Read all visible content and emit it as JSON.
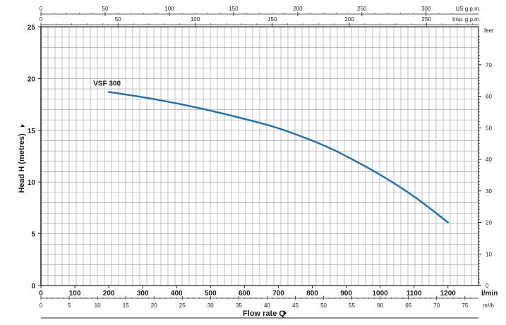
{
  "chart_data": {
    "type": "line",
    "series": [
      {
        "name": "VSF 300",
        "x": [
          200,
          300,
          400,
          500,
          600,
          700,
          800,
          850,
          900,
          1000,
          1100,
          1200
        ],
        "y": [
          18.7,
          18.2,
          17.6,
          16.9,
          16.1,
          15.2,
          14.0,
          13.3,
          12.5,
          10.7,
          8.6,
          6.1
        ]
      }
    ],
    "x_axis": {
      "label": "Flow rate  Q",
      "unit": "l/min",
      "range": [
        0,
        1290
      ],
      "ticks": [
        "0",
        "100",
        "200",
        "300",
        "400",
        "500",
        "600",
        "700",
        "800",
        "900",
        "1000",
        "1100",
        "1200"
      ]
    },
    "x_axis_m3h": {
      "unit": "m³/h",
      "ticks": [
        "0",
        "5",
        "10",
        "15",
        "20",
        "25",
        "30",
        "35",
        "40",
        "45",
        "50",
        "55",
        "60",
        "65",
        "70",
        "75"
      ]
    },
    "x_axis_us_gpm": {
      "unit": "US g.p.m.",
      "ticks": [
        "0",
        "50",
        "100",
        "150",
        "200",
        "250",
        "300"
      ]
    },
    "x_axis_imp_gpm": {
      "unit": "Imp. g.p.m.",
      "ticks": [
        "0",
        "50",
        "100",
        "150",
        "200",
        "250"
      ]
    },
    "y_axis": {
      "label": "Head H (metres)",
      "range": [
        0,
        25
      ],
      "ticks": [
        "0",
        "5",
        "10",
        "15",
        "20",
        "25"
      ]
    },
    "y_axis_feet": {
      "unit": "feet",
      "ticks": [
        "0",
        "10",
        "20",
        "30",
        "40",
        "50",
        "60",
        "70"
      ]
    },
    "grid": true,
    "colors": {
      "series": "#1f6fb0",
      "grid": "#9a9a9a",
      "frame": "#222222"
    }
  }
}
